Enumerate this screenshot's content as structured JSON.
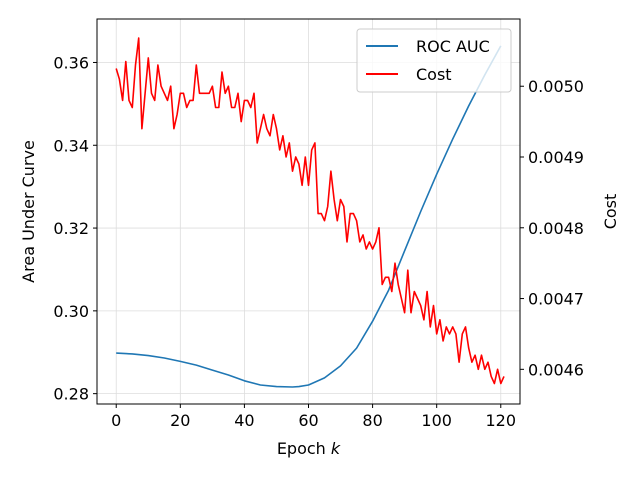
{
  "chart_data": {
    "type": "line",
    "xlabel": "Epoch",
    "xlabel_var": "k",
    "ylabel_left": "Area Under Curve",
    "ylabel_right": "Cost",
    "xlim": [
      -6,
      126
    ],
    "ylim_left": [
      0.2775,
      0.3705
    ],
    "ylim_right": [
      0.004551,
      0.005095
    ],
    "x_ticks": [
      0,
      20,
      40,
      60,
      80,
      100,
      120
    ],
    "y_ticks_left": [
      0.28,
      0.3,
      0.32,
      0.34,
      0.36
    ],
    "y_tick_labels_left": [
      "0.28",
      "0.30",
      "0.32",
      "0.34",
      "0.36"
    ],
    "y_ticks_right": [
      0.0046,
      0.0047,
      0.0048,
      0.0049,
      0.005
    ],
    "y_tick_labels_right": [
      "0.0046",
      "0.0047",
      "0.0048",
      "0.0049",
      "0.0050"
    ],
    "grid": true,
    "legend_position": "top-right",
    "series": [
      {
        "name": "ROC AUC",
        "axis": "left",
        "color": "#1f77b4",
        "x": [
          0,
          5,
          10,
          15,
          20,
          25,
          30,
          35,
          40,
          45,
          50,
          55,
          57,
          60,
          65,
          70,
          75,
          80,
          85,
          90,
          95,
          100,
          105,
          110,
          115,
          120
        ],
        "values": [
          0.2898,
          0.2896,
          0.2892,
          0.2886,
          0.2878,
          0.2869,
          0.2857,
          0.2845,
          0.2831,
          0.2821,
          0.2817,
          0.2816,
          0.2817,
          0.2821,
          0.2838,
          0.2867,
          0.291,
          0.2975,
          0.305,
          0.3145,
          0.324,
          0.333,
          0.3415,
          0.3495,
          0.357,
          0.364
        ]
      },
      {
        "name": "Cost",
        "axis": "right",
        "color": "#ff0000",
        "x": [
          0,
          1,
          2,
          3,
          4,
          5,
          6,
          7,
          8,
          9,
          10,
          11,
          12,
          13,
          14,
          15,
          16,
          17,
          18,
          19,
          20,
          21,
          22,
          23,
          24,
          25,
          26,
          27,
          28,
          29,
          30,
          31,
          32,
          33,
          34,
          35,
          36,
          37,
          38,
          39,
          40,
          41,
          42,
          43,
          44,
          45,
          46,
          47,
          48,
          49,
          50,
          51,
          52,
          53,
          54,
          55,
          56,
          57,
          58,
          59,
          60,
          61,
          62,
          63,
          64,
          65,
          66,
          67,
          68,
          69,
          70,
          71,
          72,
          73,
          74,
          75,
          76,
          77,
          78,
          79,
          80,
          81,
          82,
          83,
          84,
          85,
          86,
          87,
          88,
          89,
          90,
          91,
          92,
          93,
          94,
          95,
          96,
          97,
          98,
          99,
          100,
          101,
          102,
          103,
          104,
          105,
          106,
          107,
          108,
          109,
          110,
          111,
          112,
          113,
          114,
          115,
          116,
          117,
          118,
          119,
          120,
          121
        ],
        "values": [
          0.005025,
          0.00501,
          0.00498,
          0.005035,
          0.00498,
          0.00497,
          0.00503,
          0.005068,
          0.00494,
          0.00499,
          0.00504,
          0.00499,
          0.00498,
          0.00503,
          0.005,
          0.00499,
          0.00498,
          0.005,
          0.00494,
          0.00496,
          0.00499,
          0.00499,
          0.00497,
          0.00498,
          0.00498,
          0.00503,
          0.00499,
          0.00499,
          0.00499,
          0.00499,
          0.005,
          0.00497,
          0.00497,
          0.00502,
          0.00499,
          0.005,
          0.00497,
          0.00497,
          0.00499,
          0.00495,
          0.00498,
          0.00498,
          0.00497,
          0.00499,
          0.00492,
          0.00494,
          0.00496,
          0.00494,
          0.00493,
          0.00496,
          0.00494,
          0.00491,
          0.00493,
          0.0049,
          0.00492,
          0.00488,
          0.0049,
          0.00489,
          0.00486,
          0.0049,
          0.00486,
          0.00491,
          0.00492,
          0.00482,
          0.00482,
          0.00481,
          0.00483,
          0.00488,
          0.00484,
          0.00481,
          0.00484,
          0.00483,
          0.00478,
          0.00482,
          0.00482,
          0.00481,
          0.00478,
          0.00479,
          0.00477,
          0.00478,
          0.00477,
          0.00478,
          0.0048,
          0.00472,
          0.00473,
          0.00473,
          0.00471,
          0.00475,
          0.00472,
          0.0047,
          0.00468,
          0.00474,
          0.00468,
          0.00471,
          0.0047,
          0.00469,
          0.00467,
          0.00471,
          0.00466,
          0.00469,
          0.00465,
          0.00467,
          0.00464,
          0.00466,
          0.00465,
          0.00466,
          0.00465,
          0.00461,
          0.00465,
          0.00466,
          0.00463,
          0.00461,
          0.00462,
          0.0046,
          0.00462,
          0.0046,
          0.00461,
          0.00459,
          0.00458,
          0.0046,
          0.00458,
          0.00459
        ]
      }
    ]
  }
}
